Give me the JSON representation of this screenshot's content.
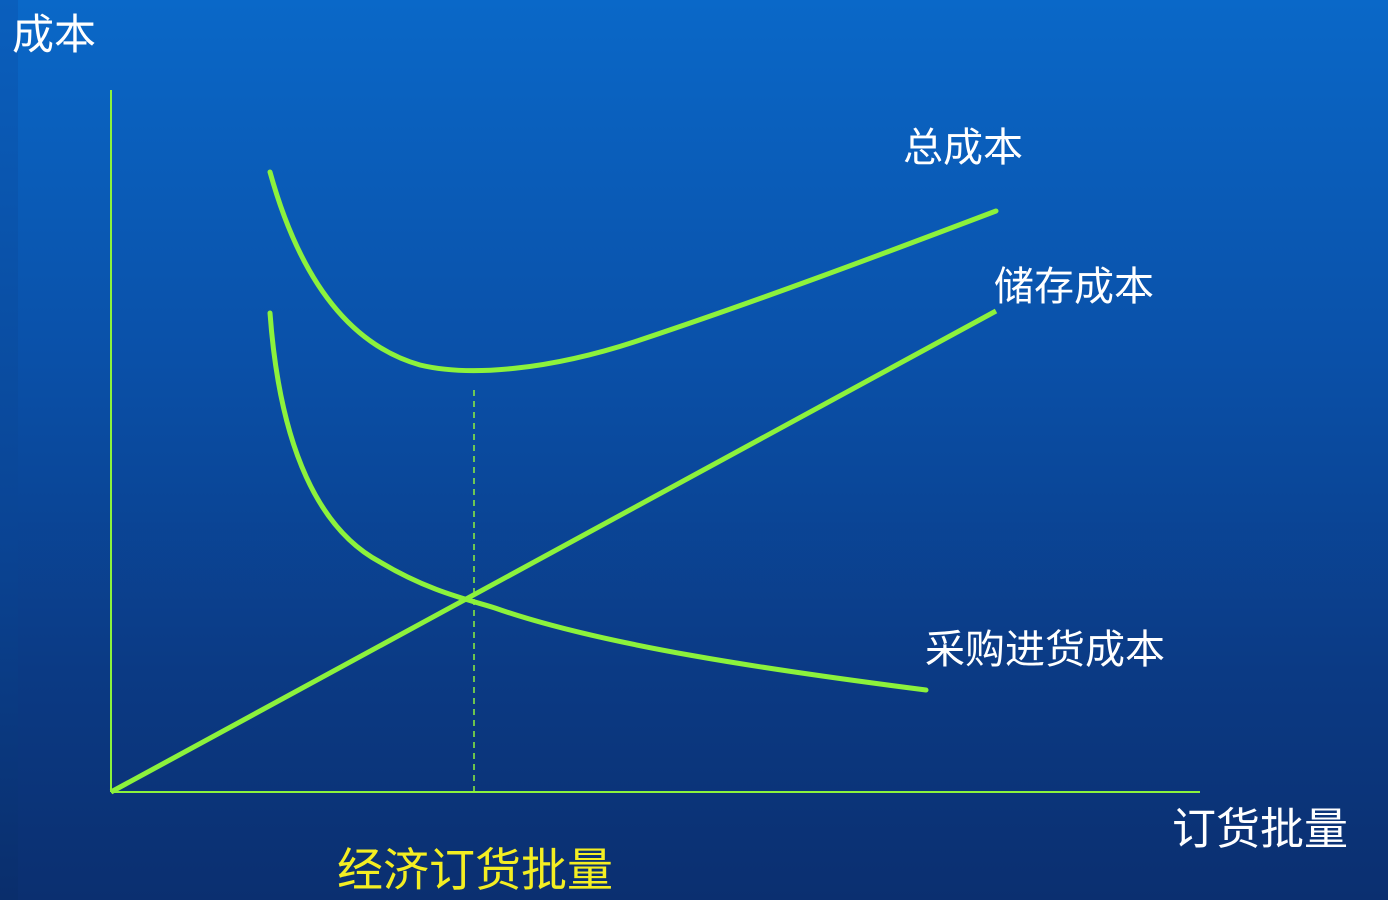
{
  "axes": {
    "y_label": "成本",
    "x_label": "订货批量"
  },
  "curves": {
    "total_cost_label": "总成本",
    "storage_cost_label": "储存成本",
    "purchase_cost_label": "采购进货成本"
  },
  "eoq_label": "经济订货批量",
  "colors": {
    "background_top": "#0a68c8",
    "background_bottom": "#0b2f70",
    "curve": "#8cf23c",
    "axis": "#8cf23c",
    "eoq_text": "#f4ee22",
    "label_text": "#ffffff"
  }
}
